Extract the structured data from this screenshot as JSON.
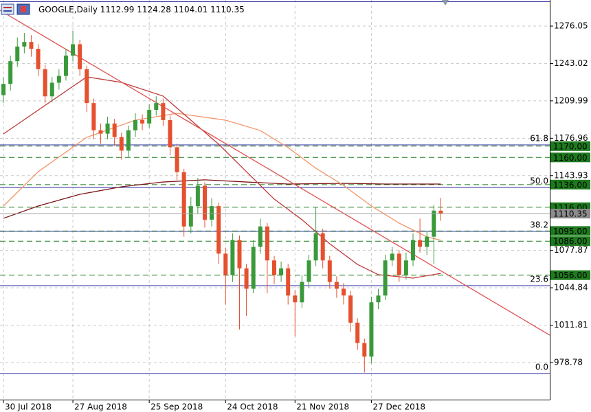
{
  "chart_data": {
    "type": "candlestick",
    "title": "GOOGLE,Daily",
    "up_color": "#3a9a3a",
    "down_color": "#e5502e",
    "xlim": [
      -0.5,
      78.7
    ],
    "ylim": [
      946.0,
      1299.1
    ],
    "grid": true,
    "xticks": [
      {
        "value": 0,
        "label": "30 Jul 2018"
      },
      {
        "value": 10,
        "label": "27 Aug 2018"
      },
      {
        "value": 21,
        "label": "25 Sep 2018"
      },
      {
        "value": 32,
        "label": "24 Oct 2018"
      },
      {
        "value": 42,
        "label": "21 Nov 2018"
      },
      {
        "value": 53,
        "label": "27 Dec 2018"
      }
    ],
    "yticks": [
      1276.05,
      1243.02,
      1209.99,
      1176.96,
      1143.93,
      1077.87,
      1044.84,
      1011.81,
      978.78
    ],
    "open": [
      1215,
      1225,
      1245,
      1258,
      1262,
      1256,
      1238,
      1214,
      1226,
      1232,
      1250,
      1260,
      1238,
      1208,
      1184,
      1181,
      1190,
      1178,
      1166,
      1184,
      1193,
      1190,
      1202,
      1208,
      1193,
      1169,
      1147,
      1099,
      1117,
      1135,
      1105,
      1117,
      1075,
      1056,
      1087,
      1062,
      1044,
      1081,
      1099,
      1069,
      1056,
      1062,
      1038,
      1032,
      1050,
      1069,
      1093,
      1069,
      1050,
      1044,
      1038,
      1014,
      996,
      984,
      1032,
      1038,
      1069,
      1075,
      1056,
      1069,
      1087,
      1081,
      1090,
      1112.99
    ],
    "high": [
      1231,
      1250,
      1266,
      1270,
      1268,
      1260,
      1242,
      1231,
      1238,
      1256,
      1272,
      1264,
      1241,
      1212,
      1190,
      1196,
      1194,
      1182,
      1188,
      1199,
      1198,
      1207,
      1214,
      1212,
      1197,
      1172,
      1150,
      1125,
      1142,
      1138,
      1124,
      1120,
      1080,
      1093,
      1091,
      1066,
      1087,
      1106,
      1102,
      1073,
      1068,
      1066,
      1043,
      1056,
      1074,
      1116,
      1097,
      1073,
      1055,
      1049,
      1042,
      1018,
      1000,
      1037,
      1044,
      1074,
      1081,
      1078,
      1076,
      1093,
      1106,
      1095,
      1118,
      1124.28
    ],
    "low": [
      1208,
      1219,
      1240,
      1252,
      1249,
      1232,
      1208,
      1209,
      1220,
      1228,
      1245,
      1232,
      1200,
      1176,
      1172,
      1176,
      1170,
      1158,
      1160,
      1178,
      1184,
      1186,
      1197,
      1188,
      1162,
      1140,
      1090,
      1093,
      1110,
      1098,
      1099,
      1066,
      1030,
      1050,
      1008,
      1020,
      1040,
      1075,
      1040,
      1048,
      1050,
      1030,
      1002,
      1027,
      1045,
      1064,
      1062,
      1044,
      1036,
      1030,
      1006,
      990,
      970,
      978,
      1026,
      1034,
      1064,
      1050,
      1052,
      1064,
      1076,
      1074,
      1066,
      1104.01
    ],
    "close": [
      1225,
      1245,
      1258,
      1262,
      1256,
      1238,
      1214,
      1226,
      1232,
      1250,
      1260,
      1238,
      1208,
      1184,
      1181,
      1190,
      1178,
      1166,
      1184,
      1193,
      1190,
      1202,
      1208,
      1193,
      1169,
      1147,
      1099,
      1117,
      1135,
      1105,
      1117,
      1075,
      1056,
      1087,
      1062,
      1044,
      1081,
      1099,
      1069,
      1056,
      1062,
      1038,
      1032,
      1050,
      1069,
      1093,
      1069,
      1050,
      1044,
      1038,
      1014,
      996,
      984,
      1032,
      1038,
      1069,
      1075,
      1056,
      1069,
      1087,
      1081,
      1090,
      1113,
      1110.35
    ],
    "moving_averages": [
      {
        "color": "#7a1414",
        "x": [
          0,
          5,
          11,
          17,
          23,
          29,
          35,
          41,
          49,
          55,
          63
        ],
        "values": [
          1106.2,
          1117.1,
          1127.4,
          1134.1,
          1138.3,
          1140.2,
          1138.3,
          1136.5,
          1137.1,
          1136.5,
          1136.5
        ]
      },
      {
        "color": "#f4956a",
        "x": [
          0,
          5,
          12,
          19,
          25,
          32,
          37,
          41,
          45,
          49,
          53,
          57,
          61,
          63
        ],
        "values": [
          1117.1,
          1147.4,
          1177.8,
          1192.9,
          1199.0,
          1192.9,
          1183.8,
          1168.7,
          1150.5,
          1135.3,
          1117.1,
          1102.0,
          1089.8,
          1086.8
        ]
      },
      {
        "color": "#c03a3a",
        "x": [
          0,
          12,
          17,
          23,
          27,
          31,
          35,
          39,
          43,
          47,
          51,
          54,
          59,
          63
        ],
        "values": [
          1180.8,
          1231.2,
          1226.3,
          1214.2,
          1192.9,
          1171.7,
          1147.4,
          1123.2,
          1105.0,
          1083.7,
          1065.5,
          1056.4,
          1053.4,
          1057.6
        ]
      }
    ],
    "trendline": {
      "color": "#e05050",
      "x": [
        -0.5,
        78.7
      ],
      "values": [
        1290,
        1003
      ]
    },
    "fib_color": "#2a2aa0",
    "fib_levels": [
      {
        "level": "61.8",
        "price": 1171.1
      },
      {
        "level": "50.0",
        "price": 1133.5
      },
      {
        "level": "38.2",
        "price": 1094.7
      },
      {
        "level": "23.6",
        "price": 1046.7
      },
      {
        "level": "0.0",
        "price": 969.1
      }
    ],
    "level_color": "#1e7a1e",
    "levels": [
      {
        "value": 1170,
        "label": "1170.00"
      },
      {
        "value": 1160,
        "label": "1160.00"
      },
      {
        "value": 1136,
        "label": "1136.00"
      },
      {
        "value": 1116,
        "label": "1116.00"
      },
      {
        "value": 1095,
        "label": "1095.00"
      },
      {
        "value": 1086,
        "label": "1086.00"
      },
      {
        "value": 1056,
        "label": "1056.00"
      }
    ]
  }
}
